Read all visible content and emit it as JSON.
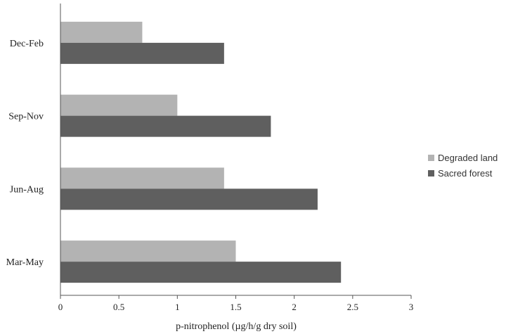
{
  "chart_data": {
    "type": "bar",
    "orientation": "horizontal",
    "categories": [
      "Dec-Feb",
      "Sep-Nov",
      "Jun-Aug",
      "Mar-May"
    ],
    "series": [
      {
        "name": "Degraded land",
        "color": "#b3b3b3",
        "values": [
          0.7,
          1.0,
          1.4,
          1.5
        ]
      },
      {
        "name": "Sacred forest",
        "color": "#5f5f5f",
        "values": [
          1.4,
          1.8,
          2.2,
          2.4
        ]
      }
    ],
    "xlabel": "p-nitrophenol (µg/h/g dry soil)",
    "ylabel": "",
    "xlim": [
      0,
      3
    ],
    "xticks": [
      "0",
      "0.5",
      "1",
      "1.5",
      "2",
      "2.5",
      "3"
    ],
    "grid": false,
    "legend_position": "right"
  }
}
